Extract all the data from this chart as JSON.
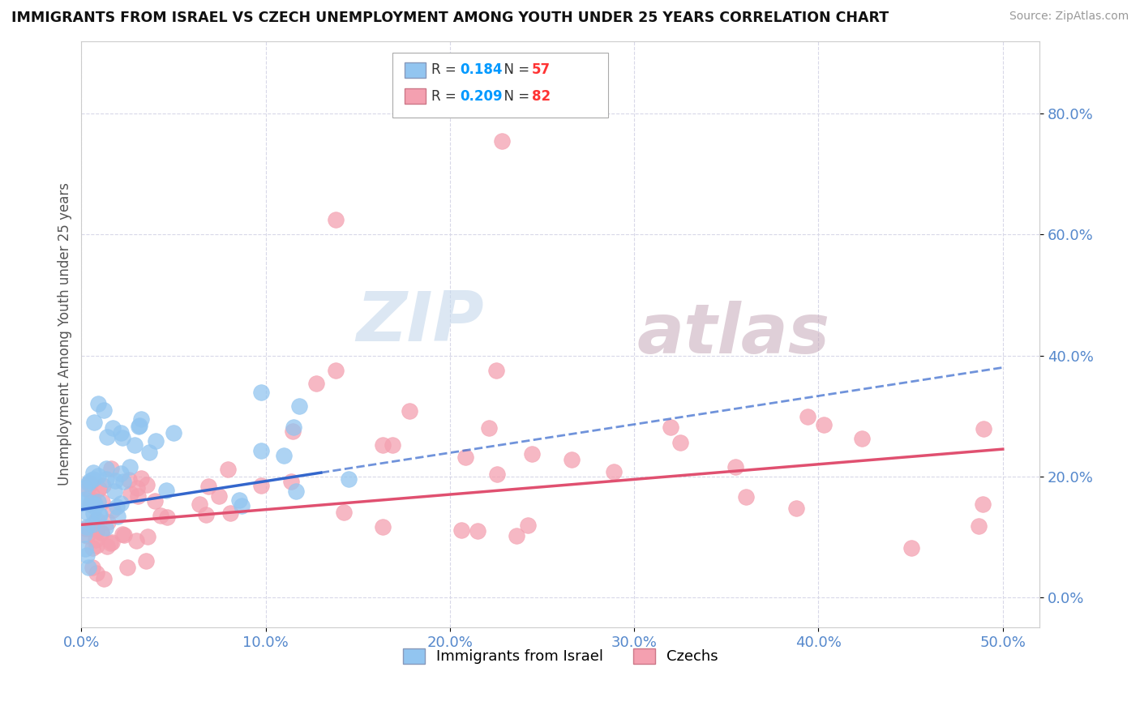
{
  "title": "IMMIGRANTS FROM ISRAEL VS CZECH UNEMPLOYMENT AMONG YOUTH UNDER 25 YEARS CORRELATION CHART",
  "source": "Source: ZipAtlas.com",
  "ylabel": "Unemployment Among Youth under 25 years",
  "watermark_zip": "ZIP",
  "watermark_atlas": "atlas",
  "series1_label": "Immigrants from Israel",
  "series1_color": "#92C5F0",
  "series1_line_color": "#3366CC",
  "series1_R": "0.184",
  "series1_N": "57",
  "series2_label": "Czechs",
  "series2_color": "#F4A0B0",
  "series2_line_color": "#E05070",
  "series2_R": "0.209",
  "series2_N": "82",
  "legend_R_color": "#0099FF",
  "legend_N_color": "#FF3333",
  "background_color": "#ffffff",
  "grid_color": "#d8d8e8",
  "axis_label_color": "#5588CC",
  "xlim": [
    0.0,
    0.52
  ],
  "ylim": [
    -0.05,
    0.92
  ],
  "x_tick_vals": [
    0.0,
    0.1,
    0.2,
    0.3,
    0.4,
    0.5
  ],
  "y_tick_vals": [
    0.0,
    0.2,
    0.4,
    0.6,
    0.8
  ],
  "line1_x0": 0.0,
  "line1_y0": 0.145,
  "line1_x1": 0.5,
  "line1_y1": 0.38,
  "line1_solid_x1": 0.13,
  "line2_x0": 0.0,
  "line2_y0": 0.12,
  "line2_x1": 0.5,
  "line2_y1": 0.245
}
